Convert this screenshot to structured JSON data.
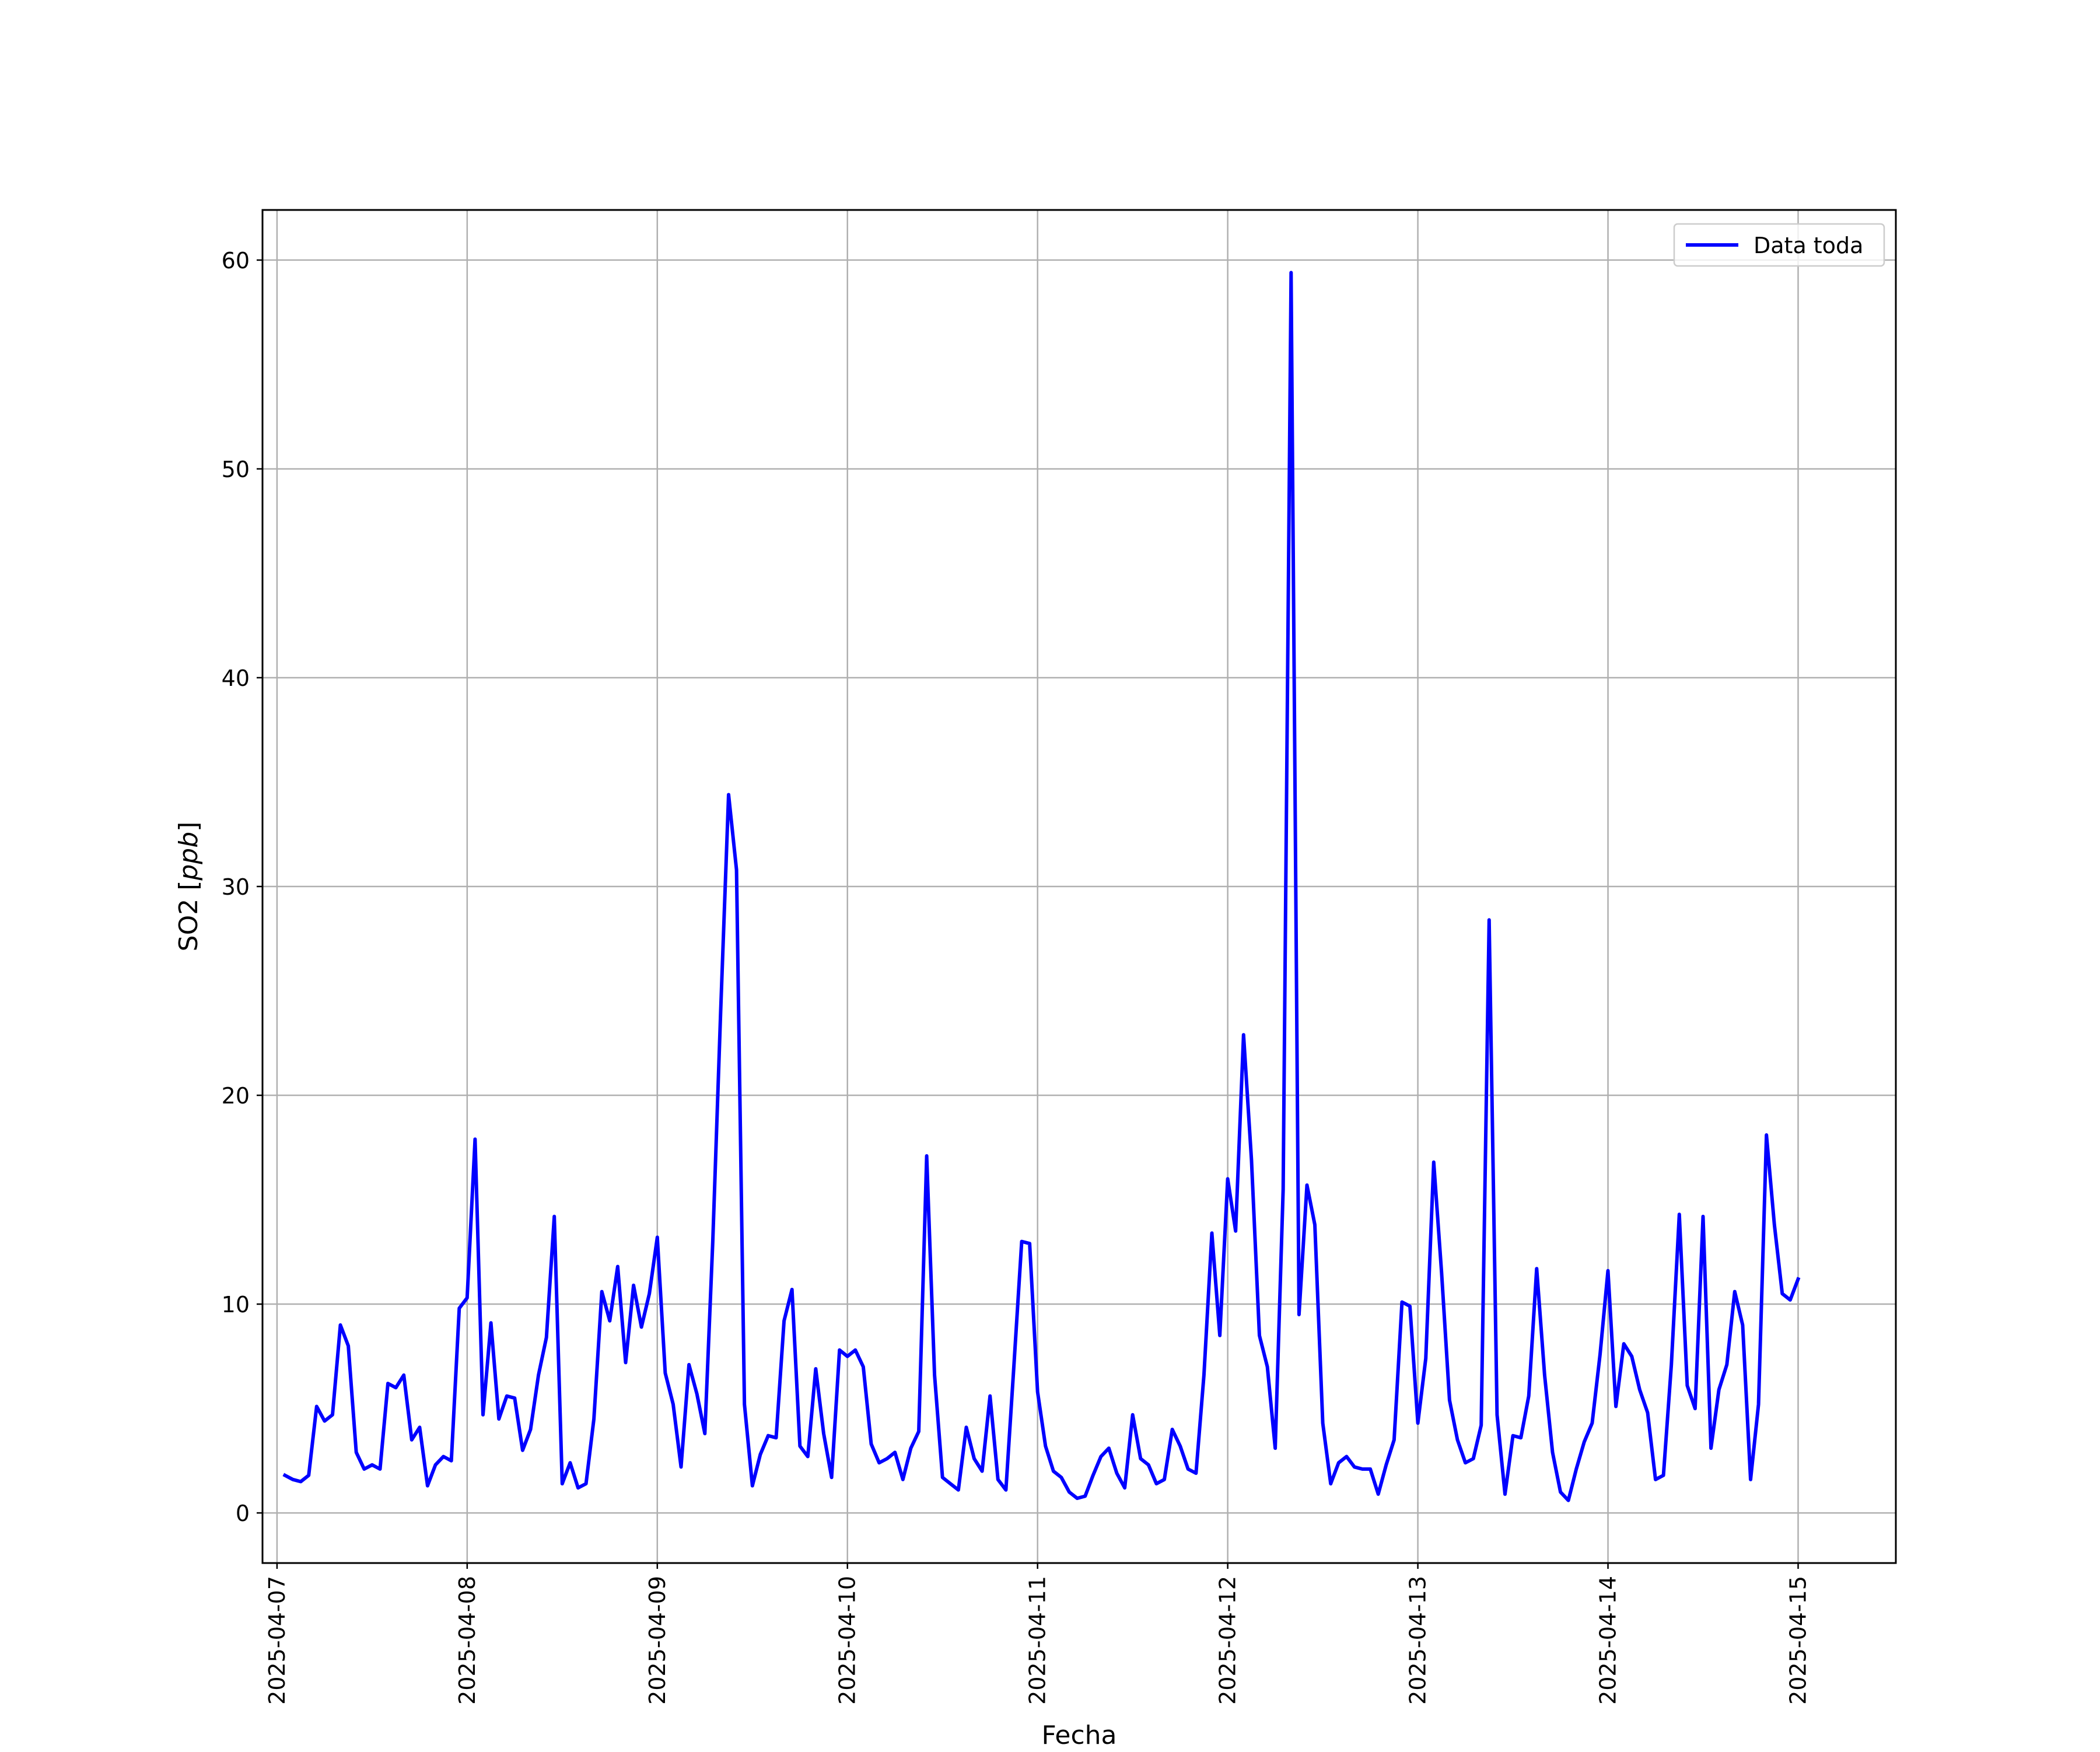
{
  "chart_data": {
    "type": "line",
    "title": "",
    "xlabel": "Fecha",
    "ylabel_main": "SO2 [",
    "ylabel_unit": "ppb",
    "ylabel_close": "]",
    "xlim": [
      "2025-04-06T22:10",
      "2025-04-15T12:20"
    ],
    "ylim": [
      -2.4,
      62.4
    ],
    "x_tick_labels": [
      "2025-04-07",
      "2025-04-08",
      "2025-04-09",
      "2025-04-10",
      "2025-04-11",
      "2025-04-12",
      "2025-04-13",
      "2025-04-14",
      "2025-04-15"
    ],
    "y_tick_labels": [
      "0",
      "10",
      "20",
      "30",
      "40",
      "50",
      "60"
    ],
    "y_ticks": [
      0,
      10,
      20,
      30,
      40,
      50,
      60
    ],
    "grid": true,
    "legend_position": "top-right",
    "series": [
      {
        "name": "Data toda",
        "color": "#0000ff",
        "x": [
          "2025-04-07T01:00",
          "2025-04-07T02:00",
          "2025-04-07T03:00",
          "2025-04-07T04:00",
          "2025-04-07T05:00",
          "2025-04-07T06:00",
          "2025-04-07T07:00",
          "2025-04-07T08:00",
          "2025-04-07T09:00",
          "2025-04-07T10:00",
          "2025-04-07T11:00",
          "2025-04-07T12:00",
          "2025-04-07T13:00",
          "2025-04-07T14:00",
          "2025-04-07T15:00",
          "2025-04-07T16:00",
          "2025-04-07T17:00",
          "2025-04-07T18:00",
          "2025-04-07T19:00",
          "2025-04-07T20:00",
          "2025-04-07T21:00",
          "2025-04-07T22:00",
          "2025-04-07T23:00",
          "2025-04-08T00:00",
          "2025-04-08T01:00",
          "2025-04-08T02:00",
          "2025-04-08T03:00",
          "2025-04-08T04:00",
          "2025-04-08T05:00",
          "2025-04-08T06:00",
          "2025-04-08T07:00",
          "2025-04-08T08:00",
          "2025-04-08T09:00",
          "2025-04-08T10:00",
          "2025-04-08T11:00",
          "2025-04-08T12:00",
          "2025-04-08T13:00",
          "2025-04-08T14:00",
          "2025-04-08T15:00",
          "2025-04-08T16:00",
          "2025-04-08T17:00",
          "2025-04-08T18:00",
          "2025-04-08T19:00",
          "2025-04-08T20:00",
          "2025-04-08T21:00",
          "2025-04-08T22:00",
          "2025-04-08T23:00",
          "2025-04-09T00:00",
          "2025-04-09T01:00",
          "2025-04-09T02:00",
          "2025-04-09T03:00",
          "2025-04-09T04:00",
          "2025-04-09T05:00",
          "2025-04-09T06:00",
          "2025-04-09T07:00",
          "2025-04-09T08:00",
          "2025-04-09T09:00",
          "2025-04-09T10:00",
          "2025-04-09T11:00",
          "2025-04-09T12:00",
          "2025-04-09T13:00",
          "2025-04-09T14:00",
          "2025-04-09T15:00",
          "2025-04-09T16:00",
          "2025-04-09T17:00",
          "2025-04-09T18:00",
          "2025-04-09T19:00",
          "2025-04-09T20:00",
          "2025-04-09T21:00",
          "2025-04-09T22:00",
          "2025-04-09T23:00",
          "2025-04-10T00:00",
          "2025-04-10T01:00",
          "2025-04-10T02:00",
          "2025-04-10T03:00",
          "2025-04-10T04:00",
          "2025-04-10T05:00",
          "2025-04-10T06:00",
          "2025-04-10T07:00",
          "2025-04-10T08:00",
          "2025-04-10T09:00",
          "2025-04-10T10:00",
          "2025-04-10T11:00",
          "2025-04-10T12:00",
          "2025-04-10T13:00",
          "2025-04-10T14:00",
          "2025-04-10T15:00",
          "2025-04-10T16:00",
          "2025-04-10T17:00",
          "2025-04-10T18:00",
          "2025-04-10T19:00",
          "2025-04-10T20:00",
          "2025-04-10T21:00",
          "2025-04-10T22:00",
          "2025-04-10T23:00",
          "2025-04-11T00:00",
          "2025-04-11T01:00",
          "2025-04-11T02:00",
          "2025-04-11T03:00",
          "2025-04-11T04:00",
          "2025-04-11T05:00",
          "2025-04-11T06:00",
          "2025-04-11T07:00",
          "2025-04-11T08:00",
          "2025-04-11T09:00",
          "2025-04-11T10:00",
          "2025-04-11T11:00",
          "2025-04-11T12:00",
          "2025-04-11T13:00",
          "2025-04-11T14:00",
          "2025-04-11T15:00",
          "2025-04-11T16:00",
          "2025-04-11T17:00",
          "2025-04-11T18:00",
          "2025-04-11T19:00",
          "2025-04-11T20:00",
          "2025-04-11T21:00",
          "2025-04-11T22:00",
          "2025-04-11T23:00",
          "2025-04-12T00:00",
          "2025-04-12T01:00",
          "2025-04-12T02:00",
          "2025-04-12T03:00",
          "2025-04-12T04:00",
          "2025-04-12T05:00",
          "2025-04-12T06:00",
          "2025-04-12T07:00",
          "2025-04-12T08:00",
          "2025-04-12T09:00",
          "2025-04-12T10:00",
          "2025-04-12T11:00",
          "2025-04-12T12:00",
          "2025-04-12T13:00",
          "2025-04-12T14:00",
          "2025-04-12T15:00",
          "2025-04-12T16:00",
          "2025-04-12T17:00",
          "2025-04-12T18:00",
          "2025-04-12T19:00",
          "2025-04-12T20:00",
          "2025-04-12T21:00",
          "2025-04-12T22:00",
          "2025-04-12T23:00",
          "2025-04-13T00:00",
          "2025-04-13T01:00",
          "2025-04-13T02:00",
          "2025-04-13T03:00",
          "2025-04-13T04:00",
          "2025-04-13T05:00",
          "2025-04-13T06:00",
          "2025-04-13T07:00",
          "2025-04-13T08:00",
          "2025-04-13T09:00",
          "2025-04-13T10:00",
          "2025-04-13T11:00",
          "2025-04-13T12:00",
          "2025-04-13T13:00",
          "2025-04-13T14:00",
          "2025-04-13T15:00",
          "2025-04-13T16:00",
          "2025-04-13T17:00",
          "2025-04-13T18:00",
          "2025-04-13T19:00",
          "2025-04-13T20:00",
          "2025-04-13T21:00",
          "2025-04-13T22:00",
          "2025-04-13T23:00",
          "2025-04-14T00:00",
          "2025-04-14T01:00",
          "2025-04-14T02:00",
          "2025-04-14T03:00",
          "2025-04-14T04:00",
          "2025-04-14T05:00",
          "2025-04-14T06:00",
          "2025-04-14T07:00",
          "2025-04-14T08:00",
          "2025-04-14T09:00",
          "2025-04-14T10:00",
          "2025-04-14T11:00",
          "2025-04-14T12:00",
          "2025-04-14T13:00",
          "2025-04-14T14:00",
          "2025-04-14T15:00",
          "2025-04-14T16:00",
          "2025-04-14T17:00",
          "2025-04-14T18:00",
          "2025-04-14T19:00",
          "2025-04-14T20:00",
          "2025-04-14T21:00",
          "2025-04-14T22:00",
          "2025-04-14T23:00",
          "2025-04-15T00:00"
        ],
        "y": [
          1.8,
          1.6,
          1.5,
          1.8,
          5.1,
          4.4,
          4.7,
          9.0,
          8.0,
          2.9,
          2.1,
          2.3,
          2.1,
          6.2,
          6.0,
          6.6,
          3.5,
          4.1,
          1.3,
          2.3,
          2.7,
          2.5,
          9.8,
          10.3,
          17.9,
          4.7,
          9.1,
          4.5,
          5.6,
          5.5,
          3.0,
          4.0,
          6.6,
          8.4,
          14.2,
          1.4,
          2.4,
          1.2,
          1.4,
          4.5,
          10.6,
          9.2,
          11.8,
          7.2,
          10.9,
          8.9,
          10.5,
          13.2,
          6.7,
          5.2,
          2.2,
          7.1,
          5.7,
          3.8,
          13.0,
          24.0,
          34.4,
          30.8,
          5.2,
          1.3,
          2.8,
          3.7,
          3.6,
          9.2,
          10.7,
          3.2,
          2.7,
          6.9,
          3.8,
          1.7,
          7.8,
          7.5,
          7.8,
          7.0,
          3.3,
          2.4,
          2.6,
          2.9,
          1.6,
          3.1,
          3.9,
          17.1,
          6.6,
          1.7,
          1.4,
          1.1,
          4.1,
          2.6,
          2.0,
          5.6,
          1.6,
          1.1,
          7.0,
          13.0,
          12.9,
          5.8,
          3.2,
          2.0,
          1.7,
          1.0,
          0.7,
          0.8,
          1.8,
          2.7,
          3.1,
          1.9,
          1.2,
          4.7,
          2.6,
          2.3,
          1.4,
          1.6,
          4.0,
          3.2,
          2.1,
          1.9,
          6.6,
          13.4,
          8.5,
          16.0,
          13.5,
          22.9,
          16.9,
          8.5,
          7.0,
          3.1,
          15.5,
          59.4,
          9.5,
          15.7,
          13.8,
          4.3,
          1.4,
          2.4,
          2.7,
          2.2,
          2.1,
          2.1,
          0.9,
          2.3,
          3.5,
          10.1,
          9.9,
          4.3,
          7.4,
          16.8,
          11.5,
          5.4,
          3.5,
          2.4,
          2.6,
          4.2,
          28.4,
          4.7,
          0.9,
          3.7,
          3.6,
          5.6,
          11.7,
          6.6,
          2.9,
          1.0,
          0.6,
          2.1,
          3.4,
          4.3,
          7.6,
          11.6,
          5.1,
          8.1,
          7.5,
          5.9,
          4.8,
          1.6,
          1.8,
          7.1,
          14.3,
          6.1,
          5.0,
          14.2,
          3.1,
          5.9,
          7.1,
          10.6,
          9.0,
          1.6,
          5.2,
          18.1,
          13.8,
          10.5,
          10.2,
          11.2
        ]
      }
    ]
  }
}
